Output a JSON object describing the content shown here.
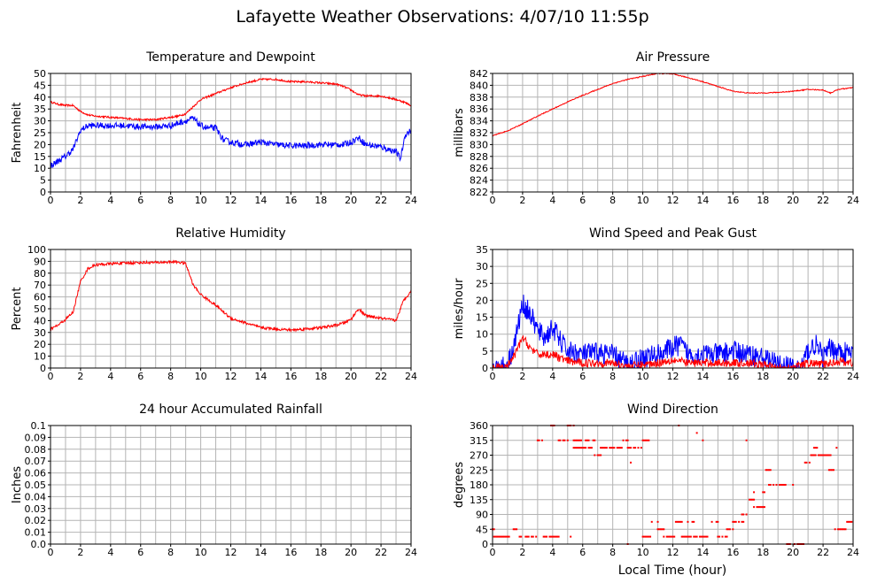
{
  "page": {
    "title": "Lafayette Weather Observations: 4/07/10 11:55p",
    "xaxis_title": "Local Time (hour)"
  },
  "colors": {
    "red": "#ff0000",
    "blue": "#0000ff",
    "grid": "#b4b4b4",
    "frame": "#000000"
  },
  "chart_data": [
    {
      "id": "temp",
      "type": "line",
      "title": "Temperature and Dewpoint",
      "ylabel": "Fahrenheit",
      "xlim": [
        0,
        24
      ],
      "ylim": [
        0,
        50
      ],
      "xticks": [
        0,
        2,
        4,
        6,
        8,
        10,
        12,
        14,
        16,
        18,
        20,
        22,
        24
      ],
      "yticks": [
        0,
        5,
        10,
        15,
        20,
        25,
        30,
        35,
        40,
        45,
        50
      ],
      "series": [
        {
          "color": "#ff0000",
          "noise": 0.4,
          "x": [
            0,
            0.5,
            1,
            1.5,
            2,
            2.5,
            3,
            4,
            5,
            6,
            7,
            8,
            8.5,
            9,
            9.5,
            10,
            11,
            12,
            13,
            14,
            15,
            16,
            17,
            18,
            19,
            19.5,
            20,
            20.5,
            21,
            22,
            23,
            23.5,
            24
          ],
          "y": [
            38,
            37,
            36.5,
            36.5,
            34,
            32.5,
            32,
            31.5,
            31,
            30.5,
            30.5,
            31.5,
            32,
            33,
            36,
            39,
            41.5,
            44,
            46,
            47.5,
            47.5,
            46.5,
            46.5,
            46,
            45.5,
            44.5,
            43,
            41,
            40.5,
            40.5,
            39,
            38,
            36.5
          ]
        },
        {
          "color": "#0000ff",
          "noise": 1.3,
          "x": [
            0,
            0.5,
            1,
            1.5,
            2,
            2.5,
            3,
            4,
            5,
            6,
            7,
            8,
            8.5,
            9,
            9.5,
            10,
            10.5,
            11,
            11.5,
            12,
            13,
            14,
            15,
            16,
            17,
            18,
            19,
            19.5,
            20,
            20.5,
            21,
            22,
            22.5,
            23,
            23.3,
            23.6,
            24
          ],
          "y": [
            11,
            13,
            15,
            18,
            26,
            28,
            28,
            28,
            28,
            27.5,
            27.5,
            28,
            29,
            30,
            31,
            28,
            27,
            27,
            22,
            21,
            20,
            21,
            20,
            19.5,
            19.5,
            20,
            20,
            20,
            21,
            23,
            20,
            19,
            18,
            17,
            14,
            24,
            26
          ]
        }
      ]
    },
    {
      "id": "pressure",
      "type": "line",
      "title": "Air Pressure",
      "ylabel": "millibars",
      "xlim": [
        0,
        24
      ],
      "ylim": [
        822,
        842
      ],
      "xticks": [
        0,
        2,
        4,
        6,
        8,
        10,
        12,
        14,
        16,
        18,
        20,
        22,
        24
      ],
      "yticks": [
        822,
        824,
        826,
        828,
        830,
        832,
        834,
        836,
        838,
        840,
        842
      ],
      "series": [
        {
          "color": "#ff0000",
          "noise": 0.08,
          "x": [
            0,
            1,
            2,
            3,
            4,
            5,
            6,
            7,
            8,
            9,
            10,
            11,
            12,
            13,
            14,
            15,
            16,
            17,
            18,
            19,
            20,
            21,
            22,
            22.5,
            23,
            24
          ],
          "y": [
            831.5,
            832.3,
            833.5,
            834.8,
            836,
            837.2,
            838.3,
            839.3,
            840.3,
            841,
            841.5,
            842,
            841.9,
            841.3,
            840.6,
            839.8,
            839,
            838.7,
            838.7,
            838.8,
            839,
            839.3,
            839.2,
            838.7,
            839.3,
            839.6
          ]
        }
      ]
    },
    {
      "id": "humidity",
      "type": "line",
      "title": "Relative Humidity",
      "ylabel": "Percent",
      "xlim": [
        0,
        24
      ],
      "ylim": [
        0,
        100
      ],
      "xticks": [
        0,
        2,
        4,
        6,
        8,
        10,
        12,
        14,
        16,
        18,
        20,
        22,
        24
      ],
      "yticks": [
        0,
        10,
        20,
        30,
        40,
        50,
        60,
        70,
        80,
        90,
        100
      ],
      "series": [
        {
          "color": "#ff0000",
          "noise": 1.2,
          "x": [
            0,
            0.5,
            1,
            1.5,
            2,
            2.5,
            3,
            4,
            5,
            6,
            7,
            8,
            8.5,
            9,
            9.5,
            10,
            11,
            12,
            13,
            14,
            15,
            16,
            17,
            18,
            19,
            19.5,
            20,
            20.5,
            21,
            22,
            22.5,
            23,
            23.5,
            24
          ],
          "y": [
            33,
            36,
            41,
            47,
            73,
            84,
            87,
            88,
            88.5,
            89,
            89,
            89.5,
            89.5,
            88,
            70,
            62,
            53,
            42,
            38,
            34,
            33,
            32,
            33,
            34,
            36,
            38,
            41,
            50,
            44,
            42,
            41,
            40,
            57,
            65
          ]
        }
      ]
    },
    {
      "id": "wind",
      "type": "line",
      "title": "Wind Speed and Peak Gust",
      "ylabel": "miles/hour",
      "xlim": [
        0,
        24
      ],
      "ylim": [
        0,
        35
      ],
      "xticks": [
        0,
        2,
        4,
        6,
        8,
        10,
        12,
        14,
        16,
        18,
        20,
        22,
        24
      ],
      "yticks": [
        0,
        5,
        10,
        15,
        20,
        25,
        30,
        35
      ],
      "series": [
        {
          "color": "#0000ff",
          "noise": 3.2,
          "x": [
            0,
            0.5,
            1,
            1.5,
            2,
            2.5,
            3,
            3.5,
            4,
            4.5,
            5,
            6,
            7,
            8,
            9,
            9.5,
            10,
            11,
            12,
            12.5,
            13,
            14,
            15,
            16,
            17,
            18,
            18.5,
            19,
            20,
            20.5,
            21,
            21.5,
            22,
            22.5,
            23,
            24
          ],
          "y": [
            0,
            0,
            1,
            8,
            19,
            16,
            11,
            9,
            12,
            8,
            5,
            4,
            4.5,
            4,
            1,
            2,
            3,
            4,
            6,
            7,
            4,
            4,
            4,
            5,
            4,
            3,
            2,
            1,
            0,
            0,
            5,
            7,
            3,
            6,
            5,
            4
          ]
        },
        {
          "color": "#ff0000",
          "noise": 1.2,
          "x": [
            0,
            1,
            1.5,
            2,
            2.5,
            3,
            4,
            5,
            6,
            7,
            8,
            9,
            10,
            11,
            12,
            13,
            14,
            15,
            16,
            17,
            18,
            19,
            20,
            21,
            22,
            23,
            24
          ],
          "y": [
            0,
            0.5,
            4,
            9,
            6,
            4,
            4,
            2,
            1.5,
            1.5,
            1.5,
            0.5,
            1,
            1.5,
            2.5,
            1.5,
            1.5,
            1.5,
            1.5,
            1.5,
            1,
            0,
            0,
            1.5,
            1,
            2,
            1.5
          ]
        }
      ]
    },
    {
      "id": "rain",
      "type": "line",
      "title": "24 hour Accumulated Rainfall",
      "ylabel": "Inches",
      "xlim": [
        0,
        24
      ],
      "ylim": [
        0,
        0.1
      ],
      "xticks": [
        0,
        2,
        4,
        6,
        8,
        10,
        12,
        14,
        16,
        18,
        20,
        22,
        24
      ],
      "yticks": [
        0,
        0.01,
        0.02,
        0.03,
        0.04,
        0.05,
        0.06,
        0.07,
        0.08,
        0.09,
        0.1
      ],
      "ytick_labels": [
        "0.0",
        "0.01",
        "0.02",
        "0.03",
        "0.04",
        "0.05",
        "0.06",
        "0.07",
        "0.08",
        "0.09",
        "0.1"
      ],
      "series": [
        {
          "color": "#ff0000",
          "noise": 0,
          "x": [
            0,
            24
          ],
          "y": [
            0,
            0
          ]
        }
      ]
    },
    {
      "id": "direction",
      "type": "scatter",
      "title": "Wind Direction",
      "ylabel": "degrees",
      "xlim": [
        0,
        24
      ],
      "ylim": [
        0,
        360
      ],
      "xticks": [
        0,
        2,
        4,
        6,
        8,
        10,
        12,
        14,
        16,
        18,
        20,
        22,
        24
      ],
      "yticks": [
        0,
        45,
        90,
        135,
        180,
        225,
        270,
        315,
        360
      ],
      "series": [
        {
          "color": "#ff0000",
          "segments": [
            {
              "x0": 0.0,
              "x1": 0.1,
              "y": 45
            },
            {
              "x0": 0.1,
              "x1": 1.4,
              "y": 22.5
            },
            {
              "x0": 1.4,
              "x1": 1.8,
              "y": 45
            },
            {
              "x0": 1.8,
              "x1": 3.0,
              "y": 22.5
            },
            {
              "x0": 3.0,
              "x1": 3.4,
              "y": 315
            },
            {
              "x0": 3.4,
              "x1": 4.0,
              "y": 22.5
            },
            {
              "x0": 3.8,
              "x1": 4.1,
              "y": 360
            },
            {
              "x0": 4.1,
              "x1": 4.4,
              "y": 22.5
            },
            {
              "x0": 4.4,
              "x1": 5.0,
              "y": 315
            },
            {
              "x0": 5.0,
              "x1": 5.4,
              "y": 360
            },
            {
              "x0": 5.4,
              "x1": 6.8,
              "y": 315
            },
            {
              "x0": 5.4,
              "x1": 6.6,
              "y": 292.5
            },
            {
              "x0": 6.8,
              "x1": 7.2,
              "y": 270
            },
            {
              "x0": 7.2,
              "x1": 8.6,
              "y": 292.5
            },
            {
              "x0": 8.6,
              "x1": 9.0,
              "y": 315
            },
            {
              "x0": 9.0,
              "x1": 10.0,
              "y": 292.5
            },
            {
              "x0": 9.2,
              "x1": 9.4,
              "y": 247.5
            },
            {
              "x0": 10.0,
              "x1": 10.4,
              "y": 315
            },
            {
              "x0": 10.0,
              "x1": 10.6,
              "y": 22.5
            },
            {
              "x0": 10.6,
              "x1": 11.0,
              "y": 67.5
            },
            {
              "x0": 11.0,
              "x1": 11.4,
              "y": 45
            },
            {
              "x0": 11.4,
              "x1": 12.2,
              "y": 22.5
            },
            {
              "x0": 12.2,
              "x1": 12.6,
              "y": 67.5
            },
            {
              "x0": 12.6,
              "x1": 13.2,
              "y": 22.5
            },
            {
              "x0": 13.0,
              "x1": 13.4,
              "y": 67.5
            },
            {
              "x0": 13.4,
              "x1": 14.4,
              "y": 22.5
            },
            {
              "x0": 14.4,
              "x1": 15.0,
              "y": 67.5
            },
            {
              "x0": 15.0,
              "x1": 15.6,
              "y": 22.5
            },
            {
              "x0": 15.6,
              "x1": 16.0,
              "y": 45
            },
            {
              "x0": 16.0,
              "x1": 16.8,
              "y": 67.5
            },
            {
              "x0": 16.6,
              "x1": 17.0,
              "y": 90
            },
            {
              "x0": 17.0,
              "x1": 17.6,
              "y": 135
            },
            {
              "x0": 17.4,
              "x1": 18.2,
              "y": 112.5
            },
            {
              "x0": 17.8,
              "x1": 18.2,
              "y": 157.5
            },
            {
              "x0": 18.2,
              "x1": 18.6,
              "y": 225
            },
            {
              "x0": 18.4,
              "x1": 19.6,
              "y": 180
            },
            {
              "x0": 19.6,
              "x1": 20.8,
              "y": 0
            },
            {
              "x0": 20.8,
              "x1": 21.4,
              "y": 247.5
            },
            {
              "x0": 21.2,
              "x1": 22.6,
              "y": 270
            },
            {
              "x0": 21.4,
              "x1": 21.8,
              "y": 292.5
            },
            {
              "x0": 22.4,
              "x1": 22.8,
              "y": 225
            },
            {
              "x0": 22.8,
              "x1": 23.6,
              "y": 45
            },
            {
              "x0": 23.6,
              "x1": 24.0,
              "y": 67.5
            }
          ],
          "points": [
            [
              5.2,
              22.5
            ],
            [
              9.0,
              0
            ],
            [
              12.4,
              360
            ],
            [
              13.6,
              337.5
            ],
            [
              14.0,
              315
            ],
            [
              16.9,
              315
            ],
            [
              17.4,
              157.5
            ],
            [
              20.0,
              180
            ],
            [
              22.9,
              292.5
            ]
          ]
        }
      ]
    }
  ]
}
